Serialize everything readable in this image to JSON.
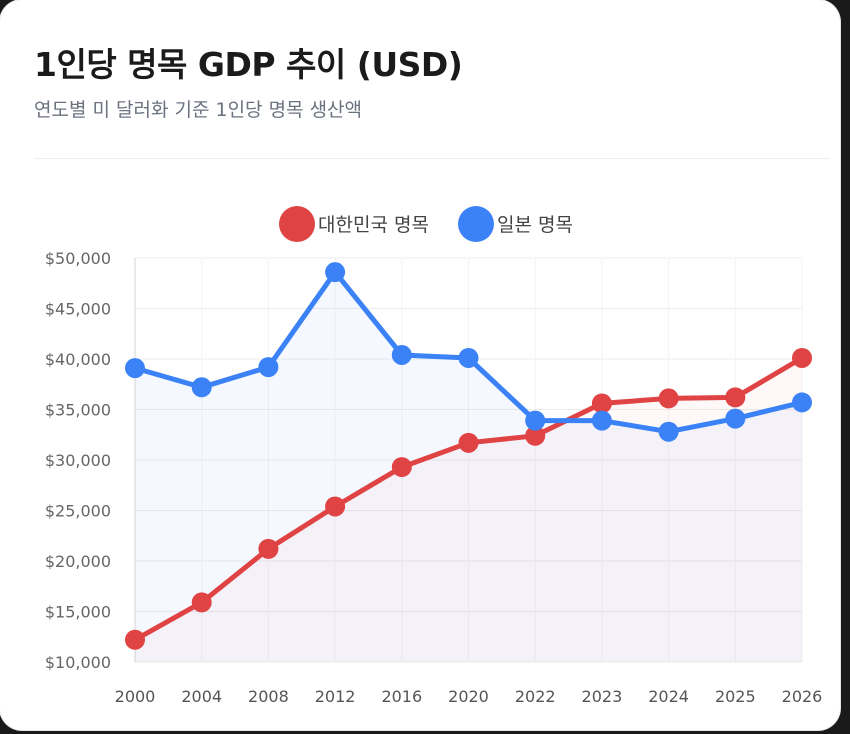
{
  "header": {
    "title": "1인당 명목 GDP 추이 (USD)",
    "subtitle": "연도별 미 달러화 기준 1인당 명목 생산액"
  },
  "chart_data": {
    "type": "line",
    "title": "1인당 명목 GDP 추이 (USD)",
    "subtitle": "연도별 미 달러화 기준 1인당 명목 생산액",
    "categories": [
      "2000",
      "2004",
      "2008",
      "2012",
      "2016",
      "2020",
      "2022",
      "2023",
      "2024",
      "2025",
      "2026"
    ],
    "series": [
      {
        "name": "대한민국 명목",
        "color": "#e04343",
        "values": [
          12200,
          15900,
          21200,
          25400,
          29300,
          31700,
          32400,
          35600,
          36100,
          36200,
          40100
        ]
      },
      {
        "name": "일본 명목",
        "color": "#3b82f6",
        "values": [
          39100,
          37200,
          39200,
          48600,
          40400,
          40100,
          33900,
          33900,
          32800,
          34100,
          35700
        ]
      }
    ],
    "yticks": [
      "$50,000",
      "$45,000",
      "$40,000",
      "$35,000",
      "$30,000",
      "$25,000",
      "$20,000",
      "$15,000",
      "$10,000"
    ],
    "ylim": [
      10000,
      50000
    ],
    "grid": true,
    "legend": "top-center"
  }
}
